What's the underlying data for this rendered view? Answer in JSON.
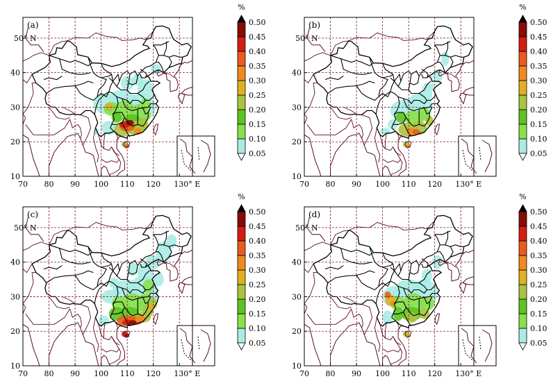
{
  "panels": [
    {
      "label": "(a)",
      "intensity": "medium"
    },
    {
      "label": "(b)",
      "intensity": "low"
    },
    {
      "label": "(c)",
      "intensity": "high"
    },
    {
      "label": "(d)",
      "intensity": "medium-west"
    }
  ],
  "lon_ticks": [
    "70",
    "80",
    "90",
    "100",
    "110",
    "120",
    "130° E"
  ],
  "lat_ticks": [
    "10",
    "20",
    "30",
    "40",
    "50° N"
  ],
  "colorbar": {
    "unit": "%",
    "levels": [
      "0.05",
      "0.10",
      "0.15",
      "0.20",
      "0.25",
      "0.30",
      "0.35",
      "0.40",
      "0.45",
      "0.50"
    ],
    "colors": [
      "#ffffff",
      "#a8ece4",
      "#88e04a",
      "#5cc420",
      "#a8c43c",
      "#e0b020",
      "#f08a20",
      "#ea5a1c",
      "#d21e10",
      "#8a0a06",
      "#000000"
    ]
  },
  "colors": {
    "frame": "#000000",
    "grid": "#7a1c28",
    "coast": "#5a0a22",
    "border": "#000000"
  }
}
